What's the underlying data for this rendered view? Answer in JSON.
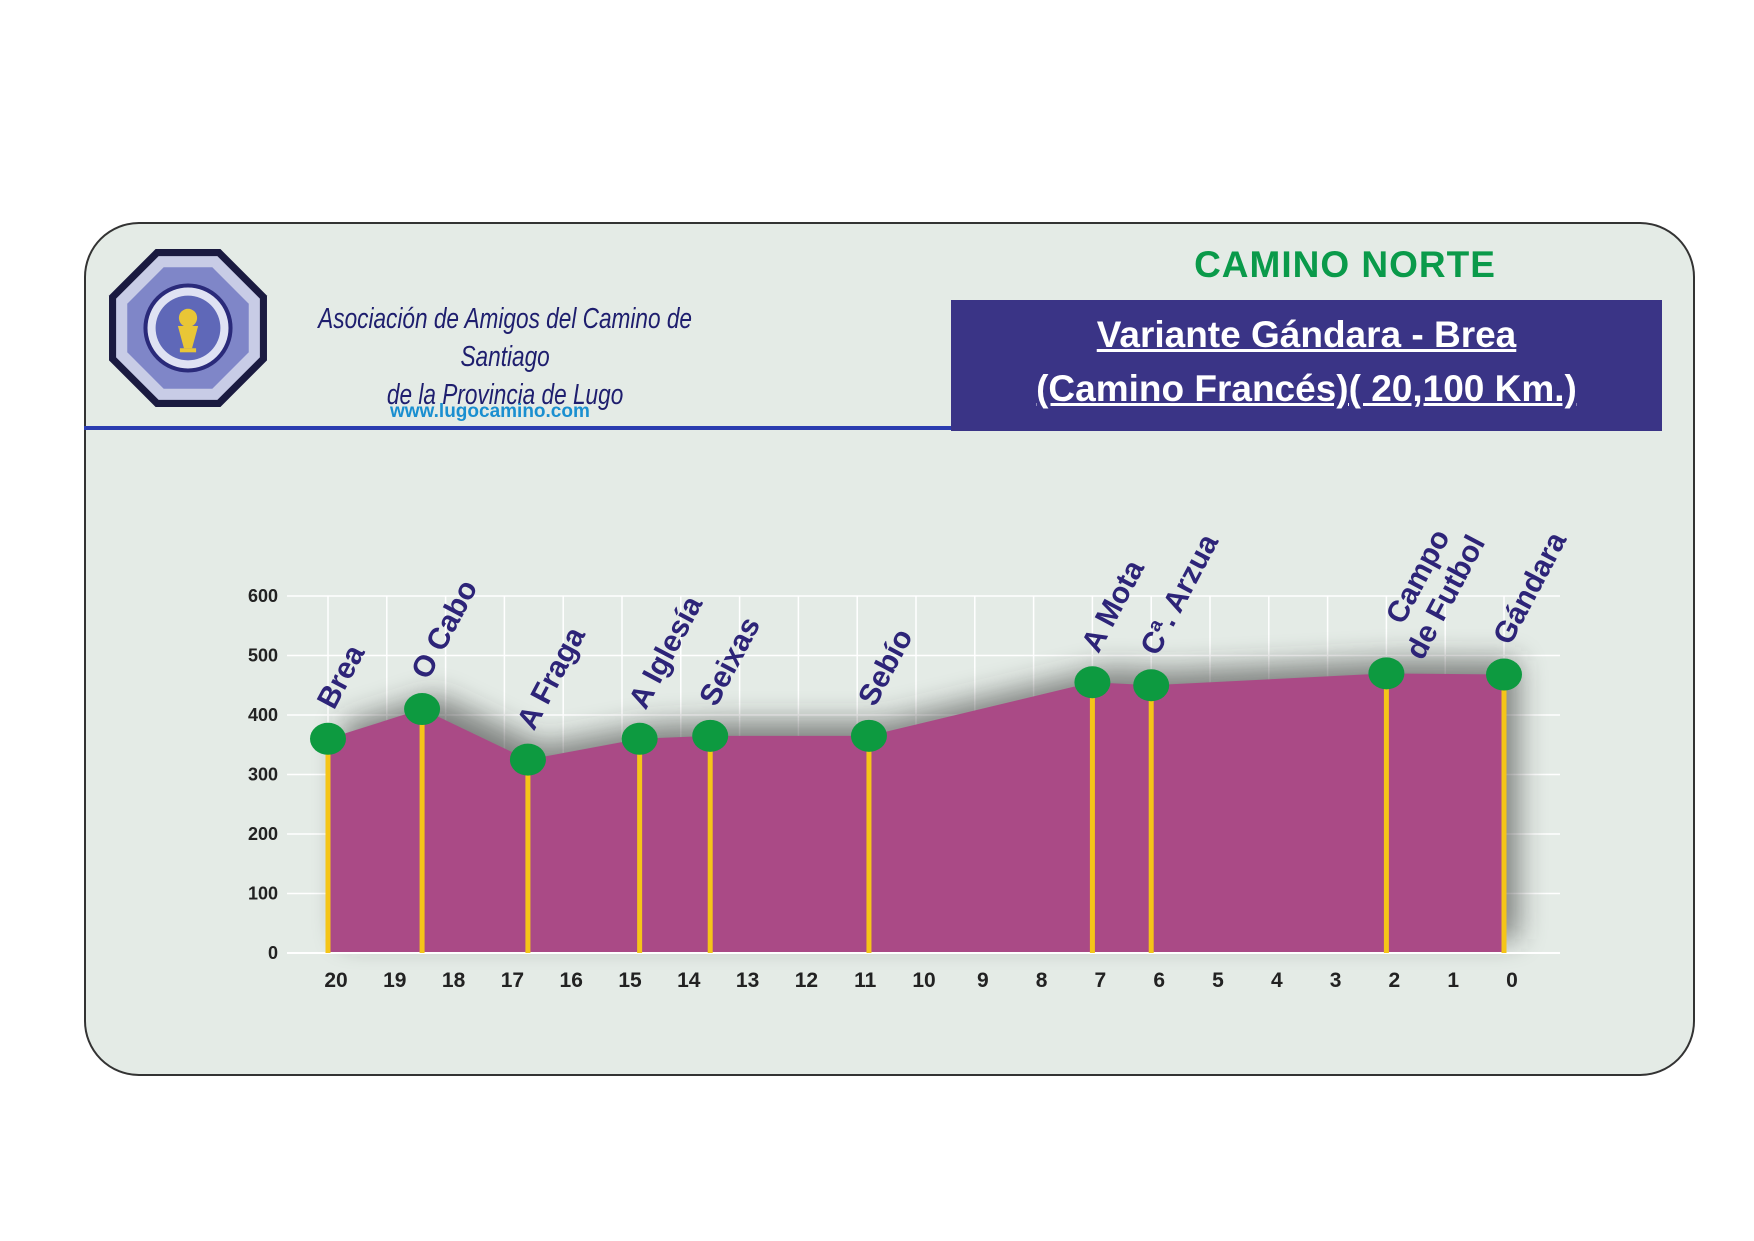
{
  "header": {
    "org_line1": "Asociación de Amigos del Camino de Santiago",
    "org_line2": "de la Provincia de Lugo",
    "url": "www.lugocamino.com",
    "route_group": "CAMINO NORTE",
    "title_line1": "Variante Gándara - Brea",
    "title_line2": " (Camino Francés)( 20,100 Km.)"
  },
  "colors": {
    "area": "#aa4a86",
    "marker": "#0d9a40",
    "pole": "#f5c518",
    "place_label": "#2d2478",
    "title_box": "#3a3486",
    "route_group": "#0a9a4a",
    "card": "#e4ebe6"
  },
  "chart_data": {
    "type": "area",
    "title": "",
    "xlabel": "",
    "ylabel": "",
    "ylim": [
      0,
      600
    ],
    "yticks": [
      0,
      100,
      200,
      300,
      400,
      500,
      600
    ],
    "xticks": [
      20,
      19,
      18,
      17,
      16,
      15,
      14,
      13,
      12,
      11,
      10,
      9,
      8,
      7,
      6,
      5,
      4,
      3,
      2,
      1,
      0
    ],
    "x_reversed": true,
    "grid": true,
    "profile": [
      {
        "x": 20.0,
        "y": 360
      },
      {
        "x": 18.4,
        "y": 410
      },
      {
        "x": 16.6,
        "y": 325
      },
      {
        "x": 14.7,
        "y": 360
      },
      {
        "x": 13.5,
        "y": 365
      },
      {
        "x": 10.8,
        "y": 365
      },
      {
        "x": 7.0,
        "y": 455
      },
      {
        "x": 6.0,
        "y": 450
      },
      {
        "x": 2.0,
        "y": 470
      },
      {
        "x": 0.0,
        "y": 468
      }
    ],
    "places": [
      {
        "name": "Brea",
        "km": 20.0,
        "alt": 360
      },
      {
        "name": "O Cabo",
        "km": 18.4,
        "alt": 410
      },
      {
        "name": "A Fraga",
        "km": 16.6,
        "alt": 325
      },
      {
        "name": "A Iglesía",
        "km": 14.7,
        "alt": 360
      },
      {
        "name": "Seixas",
        "km": 13.5,
        "alt": 365
      },
      {
        "name": "Sebío",
        "km": 10.8,
        "alt": 365
      },
      {
        "name": "A Mota",
        "km": 7.0,
        "alt": 455
      },
      {
        "name": "Cª. Arzua",
        "km": 6.0,
        "alt": 450
      },
      {
        "name": "Campo\nde Futbol",
        "km": 2.0,
        "alt": 470
      },
      {
        "name": "Gándara",
        "km": 0.0,
        "alt": 468
      }
    ]
  }
}
